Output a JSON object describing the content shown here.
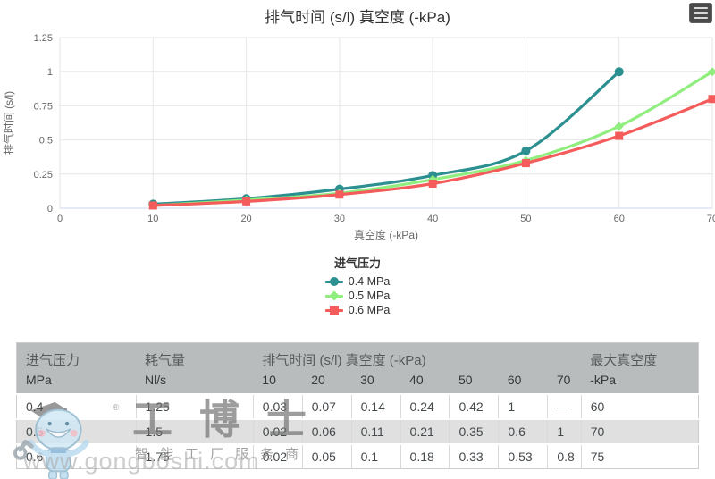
{
  "chart_data": {
    "type": "line",
    "line_shape": "spline",
    "title": "排气时间 (s/l) 真空度 (-kPa)",
    "xlabel": "真空度 (-kPa)",
    "ylabel": "排气时间 (s/l)",
    "legend_title": "进气压力",
    "legend_position": "bottom",
    "grid": true,
    "xlim": [
      0,
      70
    ],
    "ylim": [
      0,
      1.25
    ],
    "x_ticks": [
      0,
      10,
      20,
      30,
      40,
      50,
      60,
      70
    ],
    "y_ticks": [
      0,
      0.25,
      0.5,
      0.75,
      1,
      1.25
    ],
    "x": [
      10,
      20,
      30,
      40,
      50,
      60,
      70
    ],
    "series": [
      {
        "name": "0.4 MPa",
        "color": "#2b908f",
        "marker": "circle",
        "values": [
          0.03,
          0.07,
          0.14,
          0.24,
          0.42,
          1,
          null
        ]
      },
      {
        "name": "0.5 MPa",
        "color": "#90ee7e",
        "marker": "diamond",
        "values": [
          0.02,
          0.06,
          0.11,
          0.21,
          0.35,
          0.6,
          1
        ]
      },
      {
        "name": "0.6 MPa",
        "color": "#f45b5b",
        "marker": "square",
        "values": [
          0.02,
          0.05,
          0.1,
          0.18,
          0.33,
          0.53,
          0.8
        ]
      }
    ]
  },
  "table": {
    "groups": [
      {
        "label": "进气压力",
        "colspan": 1
      },
      {
        "label": "耗气量",
        "colspan": 1
      },
      {
        "label": "排气时间 (s/l) 真空度 (-kPa)",
        "colspan": 7
      },
      {
        "label": "最大真空度",
        "colspan": 1
      }
    ],
    "subheader": [
      "MPa",
      "Nl/s",
      "10",
      "20",
      "30",
      "40",
      "50",
      "60",
      "70",
      "-kPa"
    ],
    "rows": [
      [
        "0.4",
        "1.25",
        "0.03",
        "0.07",
        "0.14",
        "0.24",
        "0.42",
        "1",
        "—",
        "60"
      ],
      [
        "0.5",
        "1.5",
        "0.02",
        "0.06",
        "0.11",
        "0.21",
        "0.35",
        "0.6",
        "1",
        "70"
      ],
      [
        "0.6",
        "1.75",
        "0.02",
        "0.05",
        "0.1",
        "0.18",
        "0.33",
        "0.53",
        "0.8",
        "75"
      ]
    ]
  },
  "watermark": {
    "brand": "工博士",
    "registered": "®",
    "tagline": "智能工厂服务商",
    "url": "www.gongboshi.com"
  },
  "icons": {
    "menu": "hamburger-menu"
  },
  "colors": {
    "header_bg": "#b9bcbc",
    "stripe_bg": "#e0e0e0",
    "grid": "#e6e6e6",
    "axis_line": "#ccd6eb",
    "title_text": "#333333",
    "tick_text": "#666666"
  }
}
